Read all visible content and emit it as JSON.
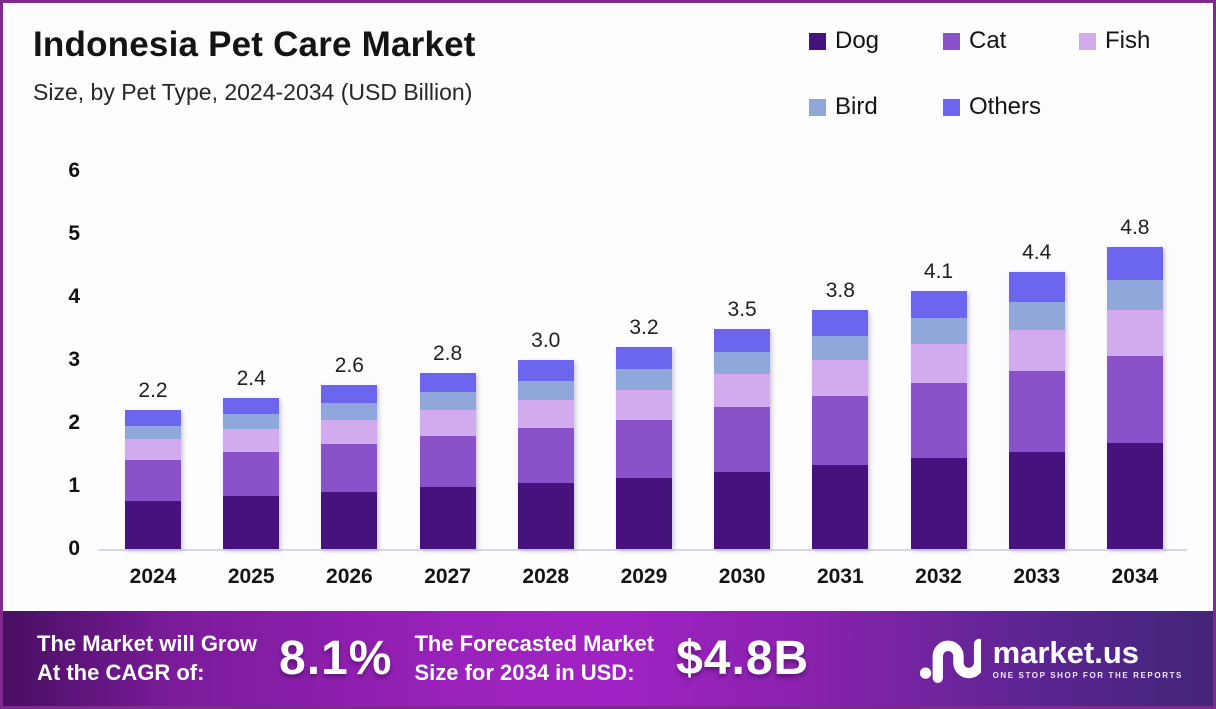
{
  "header": {
    "title": "Indonesia Pet Care Market",
    "subtitle": "Size, by Pet Type, 2024-2034 (USD Billion)"
  },
  "legend": {
    "items": [
      {
        "label": "Dog",
        "color": "#45127e"
      },
      {
        "label": "Cat",
        "color": "#8a52c8"
      },
      {
        "label": "Fish",
        "color": "#d1abee"
      },
      {
        "label": "Bird",
        "color": "#8fa7da"
      },
      {
        "label": "Others",
        "color": "#6c66ee"
      }
    ]
  },
  "chart_data": {
    "type": "bar",
    "stacked": true,
    "title": "Indonesia Pet Care Market Size, by Pet Type, 2024-2034 (USD Billion)",
    "xlabel": "",
    "ylabel": "USD Billion",
    "ylim": [
      0,
      6
    ],
    "yticks": [
      6,
      5,
      4,
      3,
      2,
      1,
      0
    ],
    "grid": false,
    "legend_position": "top-right",
    "categories": [
      "2024",
      "2025",
      "2026",
      "2027",
      "2028",
      "2029",
      "2030",
      "2031",
      "2032",
      "2033",
      "2034"
    ],
    "totals": [
      "2.2",
      "2.4",
      "2.6",
      "2.8",
      "3.0",
      "3.2",
      "3.5",
      "3.8",
      "4.1",
      "4.4",
      "4.8"
    ],
    "series": [
      {
        "name": "Dog",
        "color": "#45127e",
        "values": [
          0.77,
          0.84,
          0.91,
          0.98,
          1.05,
          1.12,
          1.23,
          1.33,
          1.44,
          1.54,
          1.68
        ]
      },
      {
        "name": "Cat",
        "color": "#8a52c8",
        "values": [
          0.64,
          0.7,
          0.75,
          0.81,
          0.87,
          0.93,
          1.02,
          1.1,
          1.19,
          1.28,
          1.39
        ]
      },
      {
        "name": "Fish",
        "color": "#d1abee",
        "values": [
          0.33,
          0.36,
          0.39,
          0.42,
          0.45,
          0.48,
          0.53,
          0.57,
          0.62,
          0.66,
          0.72
        ]
      },
      {
        "name": "Bird",
        "color": "#8fa7da",
        "values": [
          0.22,
          0.24,
          0.26,
          0.28,
          0.3,
          0.32,
          0.35,
          0.38,
          0.41,
          0.44,
          0.48
        ]
      },
      {
        "name": "Others",
        "color": "#6c66ee",
        "values": [
          0.24,
          0.26,
          0.29,
          0.31,
          0.33,
          0.35,
          0.37,
          0.42,
          0.44,
          0.48,
          0.53
        ]
      }
    ]
  },
  "banner": {
    "growth_label_line1": "The Market will Grow",
    "growth_label_line2": "At the CAGR of:",
    "cagr_value": "8.1%",
    "forecast_label_line1": "The Forecasted Market",
    "forecast_label_line2": "Size for 2034 in USD:",
    "forecast_value": "$4.8B",
    "logo_text": "market.us",
    "logo_tagline": "ONE STOP SHOP FOR THE REPORTS",
    "gradient": [
      "#470f61",
      "#a122c4",
      "#432578"
    ]
  },
  "theme": {
    "frame_border": "#7d2a8c",
    "axis_line": "#dcd8e2",
    "background": "#fdfcfe"
  }
}
